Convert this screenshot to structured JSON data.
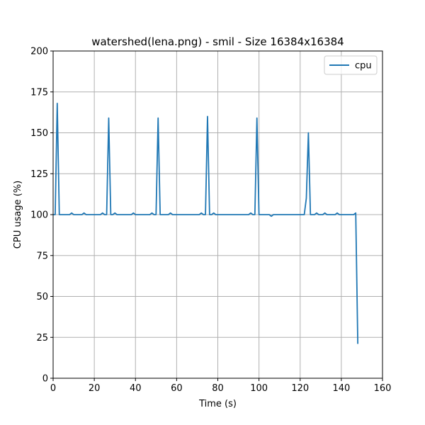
{
  "chart_data": {
    "type": "line",
    "title": "watershed(lena.png) - smil - Size 16384x16384",
    "xlabel": "Time (s)",
    "ylabel": "CPU usage (%)",
    "xlim": [
      0,
      160
    ],
    "ylim": [
      0,
      200
    ],
    "xticks": [
      0,
      20,
      40,
      60,
      80,
      100,
      120,
      140,
      160
    ],
    "yticks": [
      0,
      25,
      50,
      75,
      100,
      125,
      150,
      175,
      200
    ],
    "grid": true,
    "legend_position": "top-right",
    "series": [
      {
        "name": "cpu",
        "color": "#1f77b4",
        "x": [
          0,
          1,
          2,
          3,
          4,
          5,
          6,
          7,
          8,
          9,
          10,
          11,
          12,
          13,
          14,
          15,
          16,
          17,
          18,
          19,
          20,
          21,
          22,
          23,
          24,
          25,
          26,
          27,
          28,
          29,
          30,
          31,
          32,
          33,
          34,
          35,
          36,
          37,
          38,
          39,
          40,
          41,
          42,
          43,
          44,
          45,
          46,
          47,
          48,
          49,
          50,
          51,
          52,
          53,
          54,
          55,
          56,
          57,
          58,
          59,
          60,
          61,
          62,
          63,
          64,
          65,
          66,
          67,
          68,
          69,
          70,
          71,
          72,
          73,
          74,
          75,
          76,
          77,
          78,
          79,
          80,
          81,
          82,
          83,
          84,
          85,
          86,
          87,
          88,
          89,
          90,
          91,
          92,
          93,
          94,
          95,
          96,
          97,
          98,
          99,
          100,
          101,
          102,
          103,
          104,
          105,
          106,
          107,
          108,
          109,
          110,
          111,
          112,
          113,
          114,
          115,
          116,
          117,
          118,
          119,
          120,
          121,
          122,
          123,
          124,
          125,
          126,
          127,
          128,
          129,
          130,
          131,
          132,
          133,
          134,
          135,
          136,
          137,
          138,
          139,
          140,
          141,
          142,
          143,
          144,
          145,
          146,
          147,
          148
        ],
        "y": [
          100,
          100,
          168,
          100,
          100,
          100,
          100,
          100,
          100,
          101,
          100,
          100,
          100,
          100,
          100,
          101,
          100,
          100,
          100,
          100,
          100,
          100,
          100,
          100,
          101,
          100,
          100,
          159,
          100,
          100,
          101,
          100,
          100,
          100,
          100,
          100,
          100,
          100,
          100,
          101,
          100,
          100,
          100,
          100,
          100,
          100,
          100,
          100,
          101,
          100,
          100,
          159,
          100,
          100,
          100,
          100,
          100,
          101,
          100,
          100,
          100,
          100,
          100,
          100,
          100,
          100,
          100,
          100,
          100,
          100,
          100,
          100,
          101,
          100,
          100,
          160,
          100,
          100,
          101,
          100,
          100,
          100,
          100,
          100,
          100,
          100,
          100,
          100,
          100,
          100,
          100,
          100,
          100,
          100,
          100,
          100,
          101,
          100,
          100,
          159,
          100,
          100,
          100,
          100,
          100,
          100,
          99,
          100,
          100,
          100,
          100,
          100,
          100,
          100,
          100,
          100,
          100,
          100,
          100,
          100,
          100,
          100,
          100,
          110,
          150,
          100,
          100,
          100,
          101,
          100,
          100,
          100,
          101,
          100,
          100,
          100,
          100,
          100,
          101,
          100,
          100,
          100,
          100,
          100,
          100,
          100,
          100,
          101,
          21
        ]
      }
    ]
  }
}
